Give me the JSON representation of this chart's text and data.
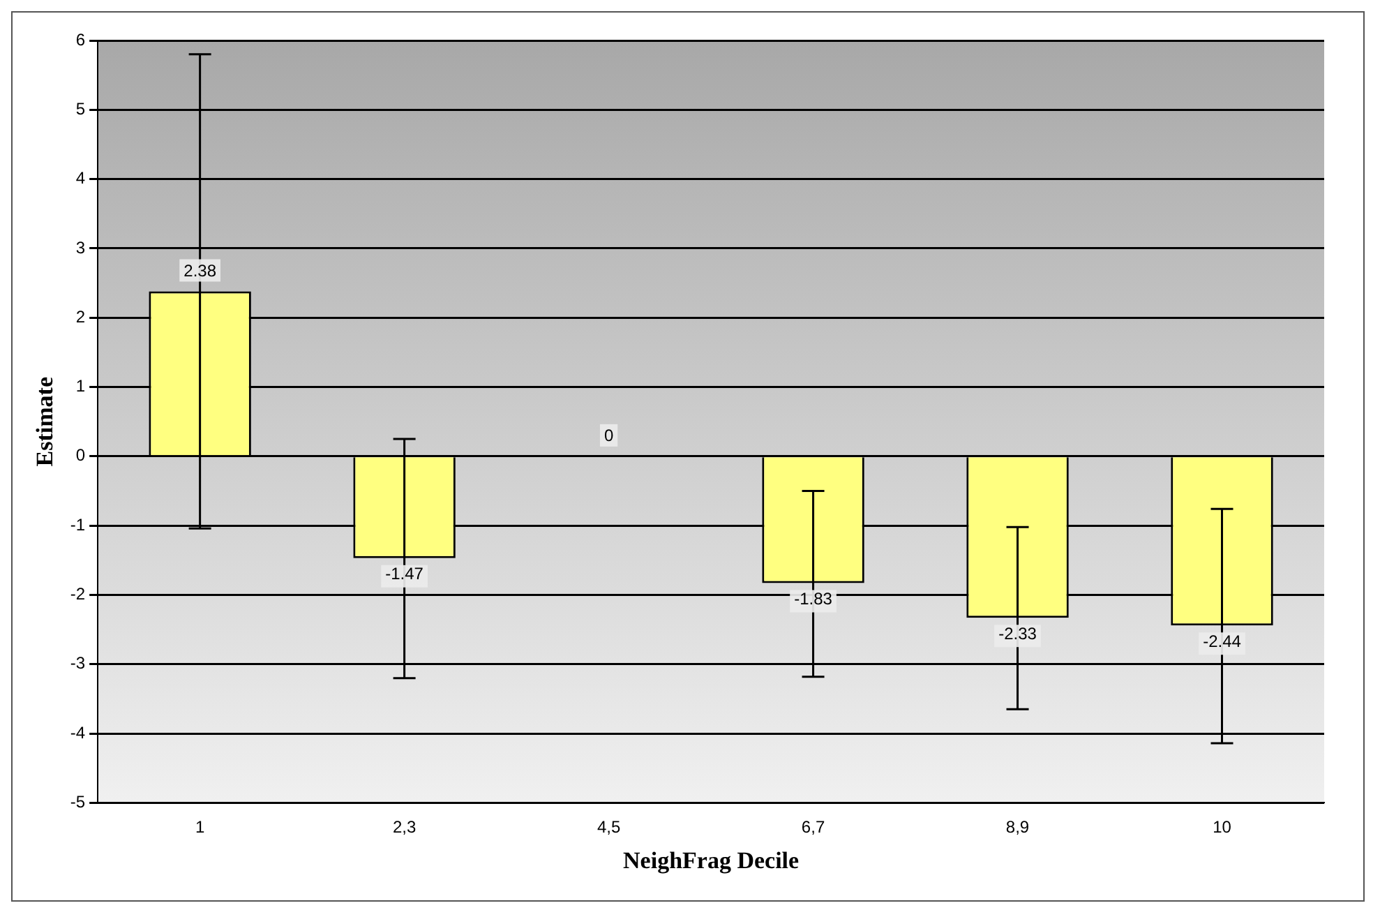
{
  "chart_data": {
    "type": "bar",
    "xlabel": "NeighFrag Decile",
    "ylabel": "Estimate",
    "categories": [
      "1",
      "2,3",
      "4,5",
      "6,7",
      "8,9",
      "10"
    ],
    "values": [
      2.38,
      -1.47,
      0,
      -1.83,
      -2.33,
      -2.44
    ],
    "errors": [
      [
        -1.04,
        5.8
      ],
      [
        -3.2,
        0.25
      ],
      null,
      [
        -3.18,
        -0.5
      ],
      [
        -3.65,
        -1.02
      ],
      [
        -4.14,
        -0.76
      ]
    ],
    "color": "#ffff80",
    "ylim": [
      -5,
      6
    ],
    "yticks": [
      -5,
      -4,
      -3,
      -2,
      -1,
      0,
      1,
      2,
      3,
      4,
      5,
      6
    ],
    "grid": "y",
    "legend": false,
    "data_labels": true
  }
}
